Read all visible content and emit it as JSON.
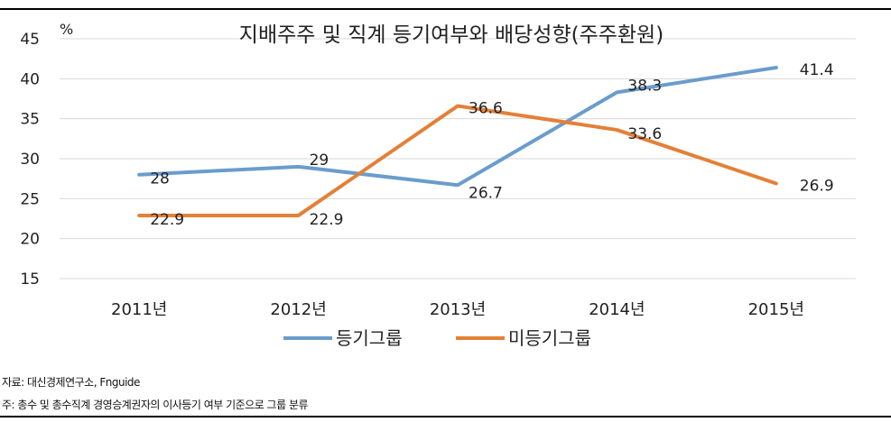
{
  "notes": {
    "source": "자료: 대신경제연구소, Fnguide",
    "footnote": "주: 총수 및 총수직계 경영승계권자의 이사등기 여부 기준으로 그룹 분류"
  },
  "colors": {
    "series1": "#6a9ccc",
    "series2": "#e48037",
    "grid": "#d9d9d9",
    "text": "#222222"
  },
  "chart_data": {
    "type": "line",
    "title": "지배주주 및 직계 등기여부와 배당성향(주주환원)",
    "unit_label": "%",
    "categories": [
      "2011년",
      "2012년",
      "2013년",
      "2014년",
      "2015년"
    ],
    "ylim": [
      15,
      45
    ],
    "yticks": [
      15,
      20,
      25,
      30,
      35,
      40,
      45
    ],
    "grid": true,
    "legend_position": "bottom",
    "series": [
      {
        "name": "등기그룹",
        "values": [
          28,
          29,
          26.7,
          38.3,
          41.4
        ],
        "labels": [
          "28",
          "29",
          "26.7",
          "38.3",
          "41.4"
        ]
      },
      {
        "name": "미등기그룹",
        "values": [
          22.9,
          22.9,
          36.6,
          33.6,
          26.9
        ],
        "labels": [
          "22.9",
          "22.9",
          "36.6",
          "33.6",
          "26.9"
        ]
      }
    ]
  }
}
